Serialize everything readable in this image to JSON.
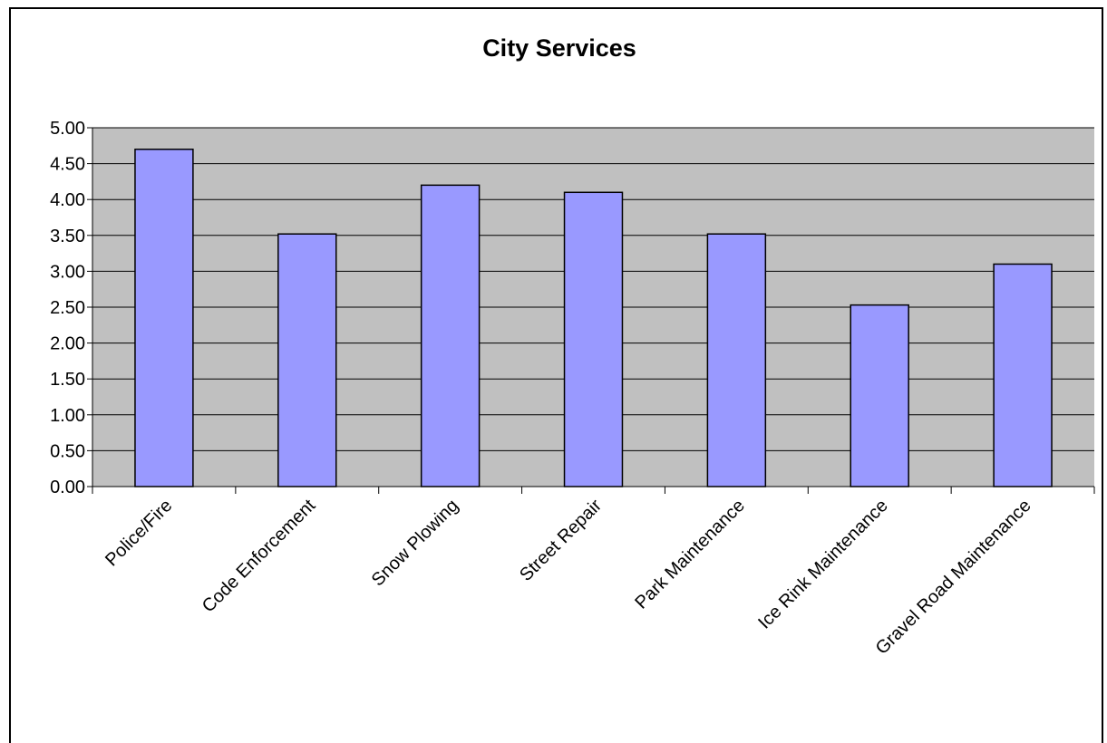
{
  "chart_data": {
    "type": "bar",
    "title": "City Services",
    "categories": [
      "Police/Fire",
      "Code Enforcement",
      "Snow Plowing",
      "Street Repair",
      "Park Maintenance",
      "Ice Rink Maintenance",
      "Gravel Road Maintenance"
    ],
    "values": [
      4.7,
      3.52,
      4.2,
      4.1,
      3.52,
      2.53,
      3.1
    ],
    "ylim": [
      0,
      5
    ],
    "yticks": [
      "0.00",
      "0.50",
      "1.00",
      "1.50",
      "2.00",
      "2.50",
      "3.00",
      "3.50",
      "4.00",
      "4.50",
      "5.00"
    ],
    "xlabel": "",
    "ylabel": "",
    "grid": true,
    "legend": "none",
    "colors": {
      "bar_fill": "#9999ff",
      "plot_background": "#c0c0c0",
      "gridline": "#000000"
    }
  }
}
